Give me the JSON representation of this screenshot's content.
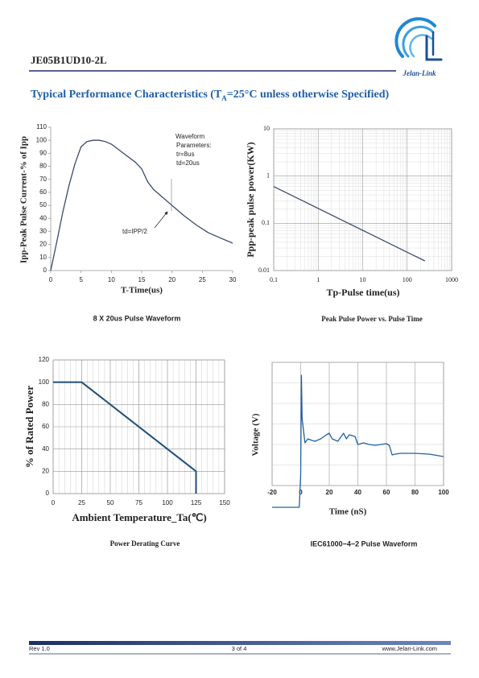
{
  "header": {
    "part_number": "JE05B1UD10-2L",
    "logo_text": "Jelan-Link"
  },
  "section_title": {
    "before": "Typical Performance Characteristics (T",
    "subscript": "A",
    "after": "=25°C unless otherwise Specified)"
  },
  "chart_data": [
    {
      "type": "line",
      "x_label": "T-Time(us)",
      "y_label": "Ipp-Peak Pulse Current-% of Ipp",
      "caption": "8 X 20us Pulse Waveform",
      "annotations": [
        "Waveform",
        "Parameters:",
        "tr=8us",
        "td=20us",
        "td=IPP/2"
      ],
      "x": [
        0,
        1,
        2,
        3,
        4,
        5,
        6,
        7,
        8,
        9,
        10,
        12,
        14,
        15,
        16,
        17,
        18,
        20,
        22,
        24,
        26,
        28,
        30
      ],
      "values": [
        0,
        22,
        45,
        65,
        82,
        95,
        99,
        100,
        100,
        99,
        97,
        90,
        83,
        78,
        68,
        62,
        58,
        50,
        42,
        35,
        29,
        25,
        21
      ],
      "color": "#3b4a6b",
      "xlim": [
        0,
        30
      ],
      "xticks": [
        0,
        5,
        10,
        15,
        20,
        25,
        30
      ],
      "ylim": [
        0,
        110
      ],
      "yticks": [
        0,
        10,
        20,
        30,
        40,
        50,
        60,
        70,
        80,
        90,
        100,
        110
      ],
      "grid": false
    },
    {
      "type": "line",
      "x_label": "Tp-Pulse time(us)",
      "y_label": "Ppp-peak pulse power(KW)",
      "caption": "Peak Pulse Power vs. Pulse Time",
      "x": [
        0.1,
        250
      ],
      "values": [
        0.6,
        0.016
      ],
      "color": "#3b4a6b",
      "log_x": true,
      "log_y": true,
      "xlim": [
        0.1,
        1000
      ],
      "xticks": [
        0.1,
        1,
        10,
        100,
        1000
      ],
      "ylim": [
        0.01,
        10
      ],
      "yticks": [
        0.01,
        0.1,
        1,
        10
      ],
      "grid": true
    },
    {
      "type": "line",
      "x_label": "Ambient Temperature_Ta(℃)",
      "y_label": "% of Rated Power",
      "caption": "Power Derating Curve",
      "x": [
        0,
        25,
        125,
        125
      ],
      "values": [
        100,
        100,
        20,
        0
      ],
      "color": "#1f4e79",
      "xlim": [
        0,
        150
      ],
      "xticks": [
        0,
        25,
        50,
        75,
        100,
        125,
        150
      ],
      "ylim": [
        0,
        120
      ],
      "yticks": [
        0,
        20,
        40,
        60,
        80,
        100,
        120
      ],
      "grid": true
    },
    {
      "type": "line",
      "x_label": "Time (nS)",
      "y_label": "Voltage (V)",
      "caption": "IEC61000−4−2 Pulse Waveform",
      "x": [
        -20,
        -1,
        0,
        0.5,
        1,
        2,
        3,
        5,
        8,
        10,
        14,
        18,
        20,
        22,
        26,
        28,
        30,
        32,
        34,
        38,
        40,
        44,
        48,
        52,
        56,
        60,
        62,
        64,
        66,
        70,
        80,
        90,
        100
      ],
      "values": [
        0,
        0,
        2,
        8.2,
        5.5,
        4.75,
        4,
        4.25,
        4.15,
        4.1,
        4.25,
        4.5,
        4.6,
        4.25,
        4.1,
        4.35,
        4.6,
        4.25,
        4.5,
        4.4,
        3.9,
        4,
        3.9,
        3.85,
        3.9,
        3.95,
        3.85,
        3.25,
        3.3,
        3.35,
        3.35,
        3.3,
        3.15
      ],
      "color": "#2060a0",
      "xlim": [
        -20,
        100
      ],
      "xticks": [
        -20,
        0,
        20,
        40,
        60,
        80,
        100
      ],
      "ylim": [
        0,
        9
      ],
      "grid": true
    }
  ],
  "footer": {
    "revision": "Rev 1.0",
    "page": "3 of  4",
    "website": "www.Jelan-Link.com"
  }
}
